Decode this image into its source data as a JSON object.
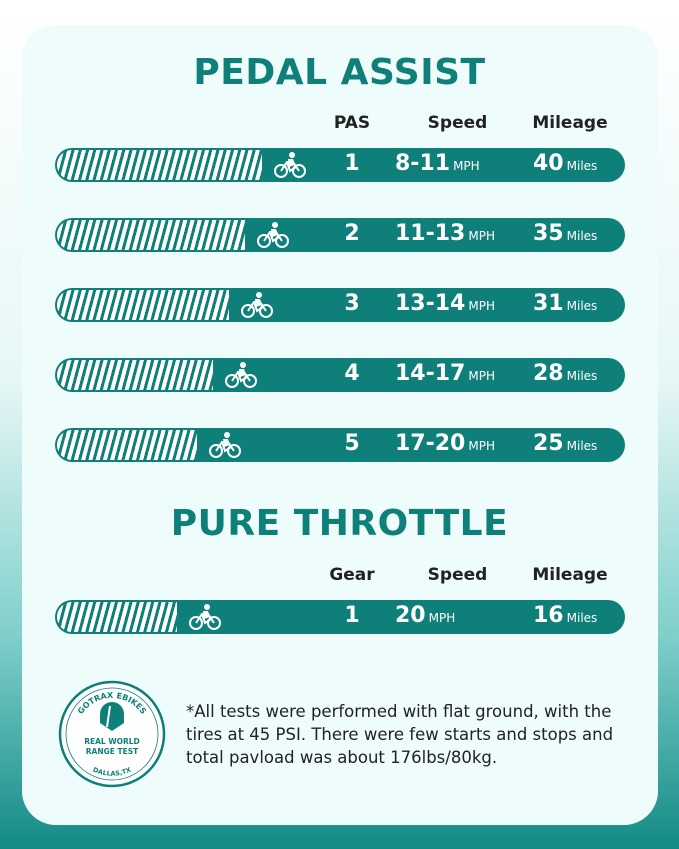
{
  "pedal_assist": {
    "title": "PEDAL ASSIST",
    "headers": [
      "PAS",
      "Speed",
      "Mileage"
    ],
    "rows": [
      {
        "level": "1",
        "speed": "8-11",
        "speed_unit": "MPH",
        "mileage": "40",
        "mileage_unit": "Miles"
      },
      {
        "level": "2",
        "speed": "11-13",
        "speed_unit": "MPH",
        "mileage": "35",
        "mileage_unit": "Miles"
      },
      {
        "level": "3",
        "speed": "13-14",
        "speed_unit": "MPH",
        "mileage": "31",
        "mileage_unit": "Miles"
      },
      {
        "level": "4",
        "speed": "14-17",
        "speed_unit": "MPH",
        "mileage": "28",
        "mileage_unit": "Miles"
      },
      {
        "level": "5",
        "speed": "17-20",
        "speed_unit": "MPH",
        "mileage": "25",
        "mileage_unit": "Miles"
      }
    ]
  },
  "pure_throttle": {
    "title": "PURE THROTTLE",
    "headers": [
      "Gear",
      "Speed",
      "Mileage"
    ],
    "rows": [
      {
        "level": "1",
        "speed": "20",
        "speed_unit": "MPH",
        "mileage": "16",
        "mileage_unit": "Miles"
      }
    ]
  },
  "badge": {
    "top": "GOTRAX EBIKES",
    "middle": "REAL WORLD RANGE TEST",
    "bottom": "DALLAS,TX"
  },
  "note": "*All tests were performed with flat ground, with the tires at 45 PSI. There were few starts and stops and total pavload was about 176lbs/80kg.",
  "colors": {
    "accent": "#0f7f7a",
    "card": "#effcfc"
  }
}
